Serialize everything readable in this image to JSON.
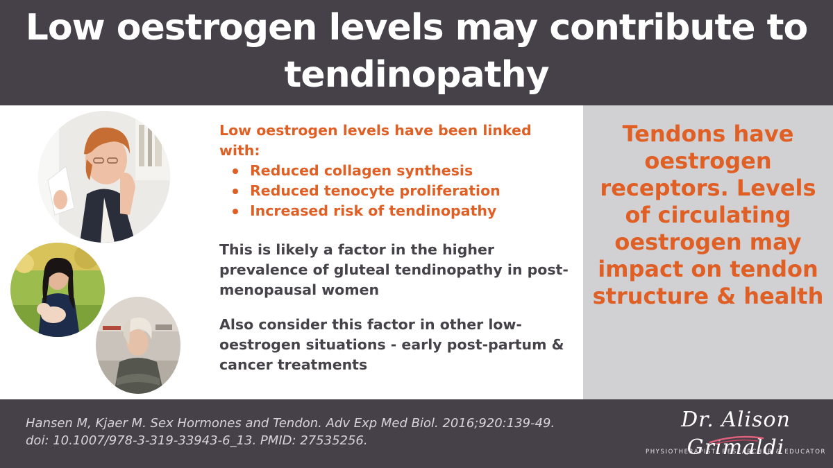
{
  "header": {
    "title": "Low oestrogen levels may contribute to tendinopathy"
  },
  "content": {
    "intro": "Low oestrogen levels have been linked with:",
    "bullets": [
      "Reduced collagen synthesis",
      "Reduced tenocyte proliferation",
      "Increased risk of tendinopathy"
    ],
    "paragraph1": "This is likely a factor in the higher prevalence of gluteal tendinopathy in post-menopausal women",
    "paragraph2": "Also consider this factor in other low-oestrogen situations - early post-partum & cancer treatments"
  },
  "sidebar": {
    "text": "Tendons have oestrogen receptors. Levels of circulating oestrogen may impact on tendon structure & health"
  },
  "footer": {
    "citation_line1": "Hansen M, Kjaer M. Sex Hormones and Tendon. Adv Exp Med Biol. 2016;920:139-49.",
    "citation_line2": "doi: 10.1007/978-3-319-33943-6_13. PMID: 27535256.",
    "logo_name": "Dr. Alison Grimaldi",
    "logo_tagline": "PHYSIOTHERAPIST, RESEARCHER & EDUCATOR"
  },
  "colors": {
    "header_bg": "#464049",
    "accent_orange": "#df5f24",
    "body_text": "#46424a",
    "sidebar_bg": "#d1d1d3"
  },
  "images": [
    "older-woman-hot-flush-photo",
    "breastfeeding-mother-photo",
    "woman-in-headscarf-photo"
  ]
}
